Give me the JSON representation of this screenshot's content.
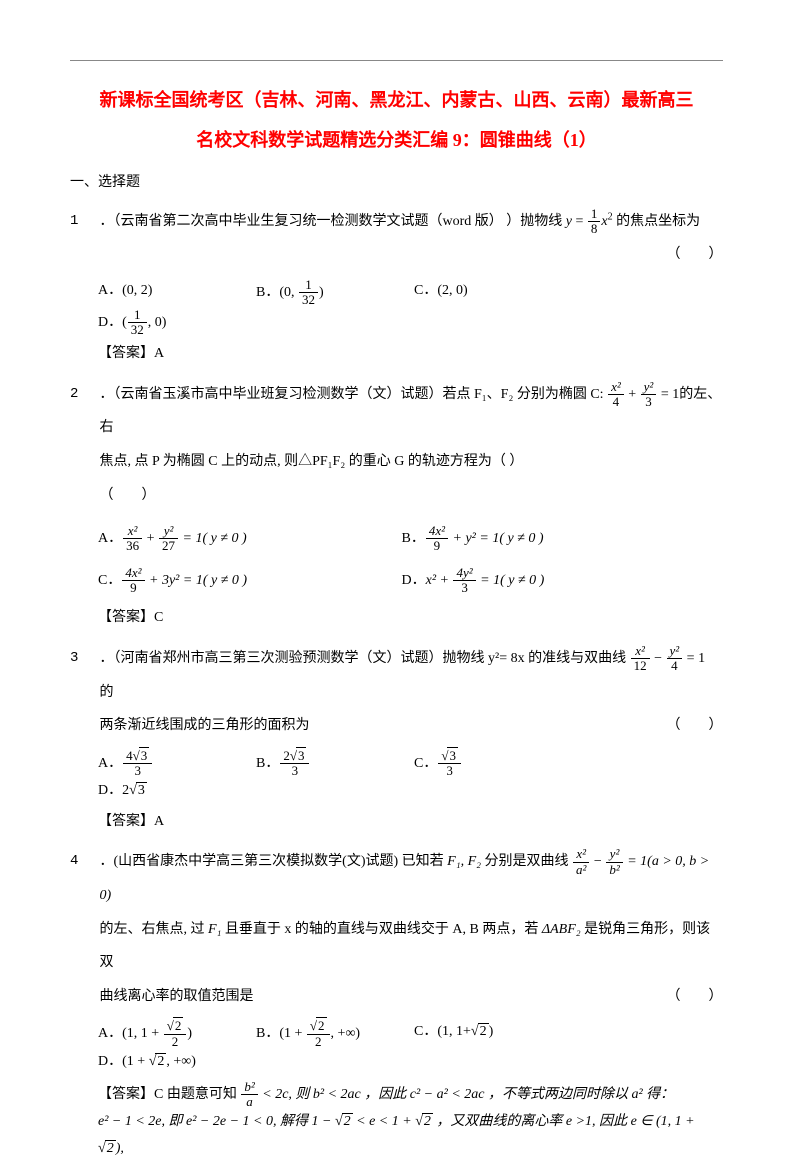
{
  "title_line1": "新课标全国统考区（吉林、河南、黑龙江、内蒙古、山西、云南）最新高三",
  "title_line2": "名校文科数学试题精选分类汇编 9：圆锥曲线（1）",
  "section1": "一、选择题",
  "q1": {
    "num": "1",
    "text_pre": "．（云南省第二次高中毕业生复习统一检测数学文试题（word 版）  ）抛物线 ",
    "formula_y": "y",
    "formula_eq": " = ",
    "frac_num": "1",
    "frac_den": "8",
    "formula_x2": "x",
    "text_post": " 的焦点坐标为",
    "blank": "（　　）",
    "optA_label": "A．",
    "optA": "(0, 2)",
    "optB_label": "B．",
    "optB_pre": "(0, ",
    "optB_num": "1",
    "optB_den": "32",
    "optB_post": ")",
    "optC_label": "C．",
    "optC": "(2, 0)",
    "optD_label": "D．",
    "optD_pre": "(",
    "optD_num": "1",
    "optD_den": "32",
    "optD_post": ", 0)",
    "answer": "【答案】A"
  },
  "q2": {
    "num": "2",
    "text_pre": "．（云南省玉溪市高中毕业班复习检测数学（文）试题）若点 F₁、F₂ 分别为椭圆 C: ",
    "frac1_num": "x²",
    "frac1_den": "4",
    "plus": " + ",
    "frac2_num": "y²",
    "frac2_den": "3",
    "eq1": " = 1",
    "text_post1": "的左、右",
    "text_line2": "焦点, 点 P 为椭圆 C 上的动点, 则△PF₁F₂ 的重心 G 的轨迹方程为（   ）",
    "blank": "（　　）",
    "optA_label": "A．",
    "optA_f1n": "x²",
    "optA_f1d": "36",
    "optA_f2n": "y²",
    "optA_f2d": "27",
    "optA_tail": " = 1( y ≠ 0 )",
    "optB_label": "B．",
    "optB_f1n": "4x²",
    "optB_f1d": "9",
    "optB_f2": " + y²",
    "optB_tail": " = 1( y ≠ 0 )",
    "optC_label": "C．",
    "optC_f1n": "4x²",
    "optC_f1d": "9",
    "optC_mid": " + 3y²",
    "optC_tail": " = 1( y ≠ 0 )",
    "optD_label": "D．",
    "optD_pre": "x² + ",
    "optD_f1n": "4y²",
    "optD_f1d": "3",
    "optD_tail": " = 1( y ≠ 0 )",
    "answer": "【答案】C"
  },
  "q3": {
    "num": "3",
    "text_pre": "．（河南省郑州市高三第三次测验预测数学（文）试题）抛物线 y²= 8x 的准线与双曲线 ",
    "f1n": "x²",
    "f1d": "12",
    "minus": " − ",
    "f2n": "y²",
    "f2d": "4",
    "eq1": " = 1 ",
    "text_post1": "的",
    "text_line2": "两条渐近线围成的三角形的面积为",
    "blank": "（　　）",
    "optA_label": "A．",
    "optA_num": "4√3",
    "optA_den": "3",
    "optB_label": "B．",
    "optB_num": "2√3",
    "optB_den": "3",
    "optC_label": "C．",
    "optC_num": "√3",
    "optC_den": "3",
    "optD_label": "D．",
    "optD": "2√3",
    "answer": "【答案】A"
  },
  "q4": {
    "num": "4",
    "text_pre": "．(山西省康杰中学高三第三次模拟数学(文)试题) 已知若 ",
    "F1F2": "F₁, F₂",
    "text_mid": " 分别是双曲线 ",
    "f1n": "x²",
    "f1d": "a²",
    "minus": " − ",
    "f2n": "y²",
    "f2d": "b²",
    "eq1": " = 1(a > 0, b > 0)",
    "text_line2_pre": "的左、右焦点, 过 ",
    "F1": "F₁",
    "text_line2_mid": " 且垂直于 x 的轴的直线与双曲线交于 A, B 两点，若 ",
    "tri": "ΔABF₂",
    "text_line2_post": " 是锐角三角形，则该双",
    "text_line3": "曲线离心率的取值范围是",
    "blank": "（　　）",
    "optA_label": "A．",
    "optA_pre": "(1, 1 + ",
    "optA_num": "√2",
    "optA_den": "2",
    "optA_post": ")",
    "optB_label": "B．",
    "optB_pre": "(1 + ",
    "optB_num": "√2",
    "optB_den": "2",
    "optB_post": ", +∞)",
    "optC_label": "C．",
    "optC": "(1, 1+√2)",
    "optD_label": "D．",
    "optD": "(1 + √2, +∞)",
    "answer_pre": "【答案】C  由题意可知 ",
    "sol_f1n": "b²",
    "sol_f1d": "a",
    "sol_1": " < 2c, 则 b² < 2ac ，因此 c² − a² < 2ac ，不等式两边同时除以 a² 得：",
    "sol_2": "e² − 1 < 2e, 即 e² − 2e − 1 < 0, 解得 1 − √2 < e < 1 + √2 ，又双曲线的离心率 e >1,  因此 e ∈ (1, 1 + √2),"
  }
}
